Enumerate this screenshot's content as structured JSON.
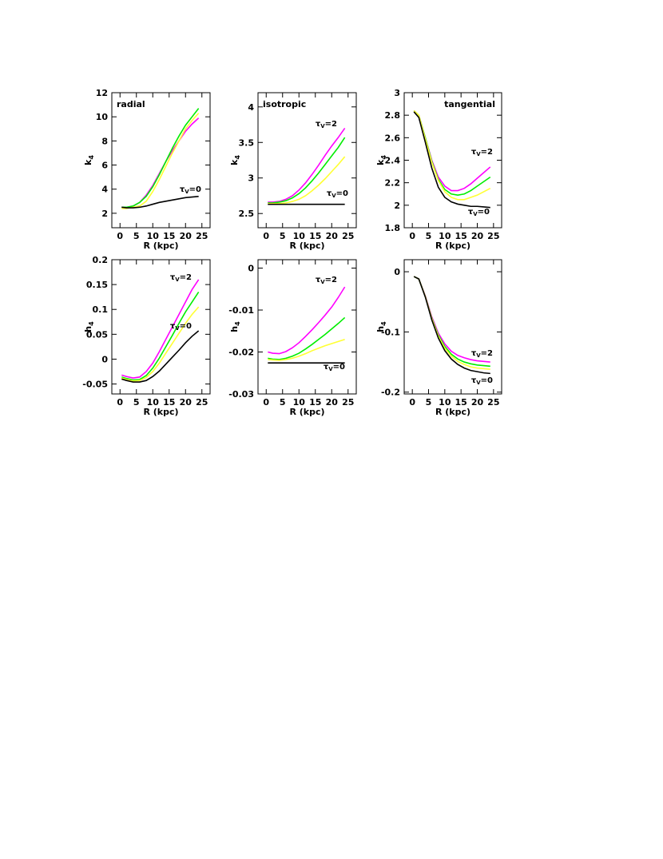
{
  "chart_data": [
    {
      "type": "line",
      "title": "radial",
      "xlabel": "R (kpc)",
      "ylabel": {
        "text": "k",
        "sub": "4"
      },
      "x": [
        0.5,
        2,
        4,
        6,
        8,
        10,
        12,
        14,
        16,
        18,
        20,
        22,
        24
      ],
      "xlim": [
        -2.5,
        27.5
      ],
      "xticks": [
        0,
        5,
        10,
        15,
        20,
        25
      ],
      "ylim": [
        0.8,
        12
      ],
      "yticks": [
        2,
        4,
        6,
        8,
        10,
        12
      ],
      "series": [
        {
          "color": "#ff00ff",
          "values": [
            2.5,
            2.5,
            2.6,
            2.9,
            3.5,
            4.3,
            5.3,
            6.3,
            7.2,
            8.0,
            8.8,
            9.4,
            9.9
          ]
        },
        {
          "color": "#00ee00",
          "values": [
            2.5,
            2.5,
            2.6,
            2.9,
            3.4,
            4.2,
            5.2,
            6.3,
            7.4,
            8.4,
            9.3,
            10.0,
            10.7
          ]
        },
        {
          "color": "#ffff33",
          "values": [
            2.4,
            2.4,
            2.5,
            2.6,
            3.0,
            3.8,
            4.8,
            5.9,
            7.0,
            8.0,
            9.0,
            9.7,
            10.3
          ]
        },
        {
          "color": "#000000",
          "values": [
            2.5,
            2.45,
            2.45,
            2.5,
            2.6,
            2.75,
            2.9,
            3.0,
            3.1,
            3.2,
            3.3,
            3.35,
            3.4
          ]
        }
      ],
      "annotations": [
        {
          "symbol": "τ",
          "sub": "V",
          "text": "=0"
        }
      ]
    },
    {
      "type": "line",
      "title": "isotropic",
      "xlabel": "R (kpc)",
      "ylabel": {
        "text": "k",
        "sub": "4"
      },
      "x": [
        0.5,
        2,
        4,
        6,
        8,
        10,
        12,
        14,
        16,
        18,
        20,
        22,
        24
      ],
      "xlim": [
        -2.5,
        27.5
      ],
      "xticks": [
        0,
        5,
        10,
        15,
        20,
        25
      ],
      "ylim": [
        2.3,
        4.2
      ],
      "yticks": [
        2.5,
        3,
        3.5,
        4
      ],
      "series": [
        {
          "color": "#ff00ff",
          "values": [
            2.66,
            2.66,
            2.67,
            2.7,
            2.75,
            2.83,
            2.93,
            3.05,
            3.18,
            3.32,
            3.45,
            3.57,
            3.7
          ]
        },
        {
          "color": "#00ee00",
          "values": [
            2.65,
            2.65,
            2.66,
            2.68,
            2.72,
            2.78,
            2.86,
            2.96,
            3.07,
            3.19,
            3.31,
            3.43,
            3.57
          ]
        },
        {
          "color": "#ffff33",
          "values": [
            2.64,
            2.64,
            2.64,
            2.65,
            2.67,
            2.7,
            2.75,
            2.82,
            2.9,
            2.99,
            3.09,
            3.19,
            3.3
          ]
        },
        {
          "color": "#000000",
          "values": [
            2.63,
            2.63,
            2.63,
            2.63,
            2.63,
            2.63,
            2.63,
            2.63,
            2.63,
            2.63,
            2.63,
            2.63,
            2.63
          ]
        }
      ],
      "annotations": [
        {
          "symbol": "τ",
          "sub": "V",
          "text": "=2"
        },
        {
          "symbol": "τ",
          "sub": "V",
          "text": "=0"
        }
      ]
    },
    {
      "type": "line",
      "title": "tangential",
      "xlabel": "R (kpc)",
      "ylabel": {
        "text": "k",
        "sub": "4"
      },
      "x": [
        0.5,
        2,
        4,
        6,
        8,
        10,
        12,
        14,
        16,
        18,
        20,
        22,
        24
      ],
      "xlim": [
        -2.5,
        27.5
      ],
      "xticks": [
        0,
        5,
        10,
        15,
        20,
        25
      ],
      "ylim": [
        1.8,
        3
      ],
      "yticks": [
        1.8,
        2,
        2.2,
        2.4,
        2.6,
        2.8,
        3
      ],
      "series": [
        {
          "color": "#ff00ff",
          "values": [
            2.84,
            2.8,
            2.6,
            2.4,
            2.25,
            2.17,
            2.13,
            2.13,
            2.15,
            2.19,
            2.24,
            2.29,
            2.34
          ]
        },
        {
          "color": "#00ee00",
          "values": [
            2.84,
            2.8,
            2.6,
            2.39,
            2.23,
            2.14,
            2.1,
            2.09,
            2.1,
            2.13,
            2.17,
            2.21,
            2.25
          ]
        },
        {
          "color": "#ffff33",
          "values": [
            2.84,
            2.8,
            2.59,
            2.38,
            2.22,
            2.12,
            2.07,
            2.05,
            2.05,
            2.07,
            2.09,
            2.12,
            2.15
          ]
        },
        {
          "color": "#000000",
          "values": [
            2.83,
            2.78,
            2.56,
            2.33,
            2.16,
            2.07,
            2.03,
            2.01,
            2.0,
            1.99,
            1.99,
            1.985,
            1.98
          ]
        }
      ],
      "annotations": [
        {
          "symbol": "τ",
          "sub": "V",
          "text": "=2"
        },
        {
          "symbol": "τ",
          "sub": "V",
          "text": "=0"
        }
      ]
    },
    {
      "type": "line",
      "xlabel": "R (kpc)",
      "ylabel": {
        "text": "h",
        "sub": "4"
      },
      "x": [
        0.5,
        2,
        4,
        6,
        8,
        10,
        12,
        14,
        16,
        18,
        20,
        22,
        24
      ],
      "xlim": [
        -2.5,
        27.5
      ],
      "xticks": [
        0,
        5,
        10,
        15,
        20,
        25
      ],
      "ylim": [
        -0.07,
        0.2
      ],
      "yticks": [
        -0.05,
        0,
        0.05,
        0.1,
        0.15,
        0.2
      ],
      "series": [
        {
          "color": "#ff00ff",
          "values": [
            -0.032,
            -0.035,
            -0.038,
            -0.036,
            -0.025,
            -0.008,
            0.015,
            0.04,
            0.065,
            0.09,
            0.115,
            0.14,
            0.16
          ]
        },
        {
          "color": "#00ee00",
          "values": [
            -0.036,
            -0.039,
            -0.042,
            -0.041,
            -0.033,
            -0.018,
            0.002,
            0.025,
            0.048,
            0.072,
            0.095,
            0.115,
            0.135
          ]
        },
        {
          "color": "#ffff33",
          "values": [
            -0.038,
            -0.041,
            -0.044,
            -0.043,
            -0.037,
            -0.025,
            -0.008,
            0.012,
            0.032,
            0.052,
            0.072,
            0.09,
            0.105
          ]
        },
        {
          "color": "#000000",
          "values": [
            -0.04,
            -0.043,
            -0.046,
            -0.046,
            -0.043,
            -0.035,
            -0.024,
            -0.01,
            0.004,
            0.018,
            0.033,
            0.046,
            0.057
          ]
        }
      ],
      "annotations": [
        {
          "symbol": "τ",
          "sub": "V",
          "text": "=2"
        },
        {
          "symbol": "τ",
          "sub": "V",
          "text": "=0"
        }
      ]
    },
    {
      "type": "line",
      "xlabel": "R (kpc)",
      "ylabel": {
        "text": "h",
        "sub": "4"
      },
      "x": [
        0.5,
        2,
        4,
        6,
        8,
        10,
        12,
        14,
        16,
        18,
        20,
        22,
        24
      ],
      "xlim": [
        -2.5,
        27.5
      ],
      "xticks": [
        0,
        5,
        10,
        15,
        20,
        25
      ],
      "ylim": [
        -0.03,
        0.002
      ],
      "yticks": [
        -0.03,
        -0.02,
        -0.01,
        0
      ],
      "series": [
        {
          "color": "#ff00ff",
          "values": [
            -0.02,
            -0.0203,
            -0.0204,
            -0.0199,
            -0.019,
            -0.0178,
            -0.0163,
            -0.0147,
            -0.013,
            -0.0112,
            -0.0093,
            -0.007,
            -0.0045
          ]
        },
        {
          "color": "#00ee00",
          "values": [
            -0.0215,
            -0.0217,
            -0.0218,
            -0.0215,
            -0.021,
            -0.0203,
            -0.0193,
            -0.0182,
            -0.017,
            -0.0158,
            -0.0145,
            -0.0132,
            -0.0118
          ]
        },
        {
          "color": "#ffff33",
          "values": [
            -0.0218,
            -0.0219,
            -0.022,
            -0.0218,
            -0.0215,
            -0.021,
            -0.0204,
            -0.0197,
            -0.0191,
            -0.0185,
            -0.018,
            -0.0175,
            -0.017
          ]
        },
        {
          "color": "#000000",
          "values": [
            -0.0226,
            -0.0226,
            -0.0226,
            -0.0226,
            -0.0226,
            -0.0226,
            -0.0226,
            -0.0226,
            -0.0226,
            -0.0226,
            -0.0226,
            -0.0226,
            -0.0226
          ]
        }
      ],
      "annotations": [
        {
          "symbol": "τ",
          "sub": "V",
          "text": "=2"
        },
        {
          "symbol": "τ",
          "sub": "V",
          "text": "=0"
        }
      ]
    },
    {
      "type": "line",
      "xlabel": "R (kpc)",
      "ylabel": {
        "text": "h",
        "sub": "4"
      },
      "x": [
        0.5,
        2,
        4,
        6,
        8,
        10,
        12,
        14,
        16,
        18,
        20,
        22,
        24
      ],
      "xlim": [
        -2.5,
        27.5
      ],
      "xticks": [
        0,
        5,
        10,
        15,
        20,
        25
      ],
      "ylim": [
        -0.203,
        0.02
      ],
      "yticks": [
        -0.2,
        -0.1,
        0
      ],
      "series": [
        {
          "color": "#ff00ff",
          "values": [
            -0.008,
            -0.012,
            -0.04,
            -0.075,
            -0.102,
            -0.12,
            -0.132,
            -0.139,
            -0.143,
            -0.146,
            -0.148,
            -0.149,
            -0.15
          ]
        },
        {
          "color": "#00ee00",
          "values": [
            -0.008,
            -0.012,
            -0.041,
            -0.077,
            -0.105,
            -0.124,
            -0.137,
            -0.145,
            -0.15,
            -0.153,
            -0.155,
            -0.156,
            -0.157
          ]
        },
        {
          "color": "#ffff33",
          "values": [
            -0.008,
            -0.012,
            -0.041,
            -0.078,
            -0.107,
            -0.127,
            -0.14,
            -0.149,
            -0.154,
            -0.158,
            -0.16,
            -0.161,
            -0.162
          ]
        },
        {
          "color": "#000000",
          "values": [
            -0.008,
            -0.012,
            -0.042,
            -0.08,
            -0.11,
            -0.131,
            -0.145,
            -0.154,
            -0.16,
            -0.164,
            -0.166,
            -0.168,
            -0.169
          ]
        }
      ],
      "annotations": [
        {
          "symbol": "τ",
          "sub": "V",
          "text": "=2"
        },
        {
          "symbol": "τ",
          "sub": "V",
          "text": "=0"
        }
      ]
    }
  ]
}
